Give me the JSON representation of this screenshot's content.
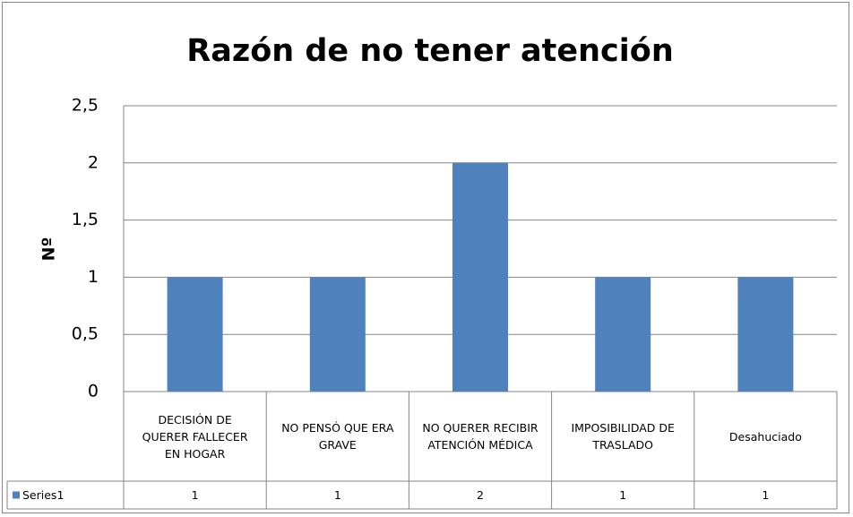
{
  "chart_data": {
    "type": "bar",
    "title": "Razón de no tener atención",
    "y_label": "Nº",
    "categories": [
      "DECISIÓN DE QUERER FALLECER EN HOGAR",
      "NO PENSÓ QUE ERA GRAVE",
      "NO QUERER RECIBIR ATENCIÓN MÉDICA",
      "IMPOSIBILIDAD DE TRASLADO",
      "Desahuciado"
    ],
    "series": [
      {
        "name": "Series1",
        "color": "#4f81bd",
        "values": [
          1,
          1,
          2,
          1,
          1
        ]
      }
    ],
    "ylim": [
      0,
      2.5
    ],
    "yticks": [
      0,
      {
        "value": 0.5,
        "label": "0,5"
      },
      1,
      {
        "value": 1.5,
        "label": "1,5"
      },
      2,
      {
        "value": 2.5,
        "label": "2,5"
      }
    ],
    "grid": true,
    "data_table": true
  }
}
